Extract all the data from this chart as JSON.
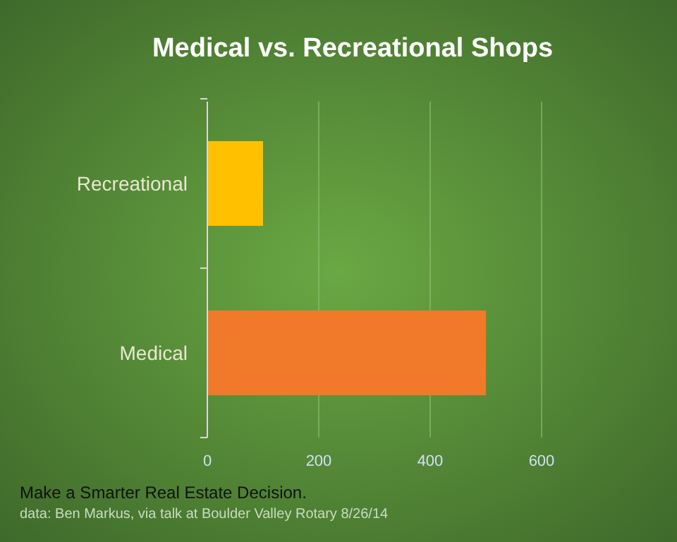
{
  "chart_data": {
    "type": "bar",
    "orientation": "horizontal",
    "title": "Medical  vs.  Recreational  Shops",
    "categories": [
      "Recreational",
      "Medical"
    ],
    "values": [
      100,
      500
    ],
    "colors": [
      "#ffc000",
      "#f07a2a"
    ],
    "xlim": [
      0,
      600
    ],
    "xticks": [
      0,
      200,
      400,
      600
    ],
    "grid": "x",
    "annotations": [
      "Make a Smarter Real Estate Decision.",
      "data:  Ben Markus, via talk at Boulder Valley Rotary 8/26/14"
    ]
  }
}
